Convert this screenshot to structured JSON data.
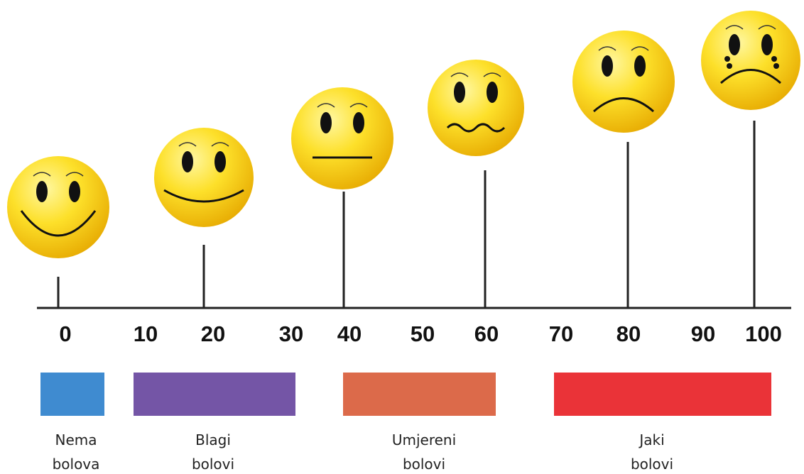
{
  "scale": {
    "ticks": [
      "0",
      "10",
      "20",
      "30",
      "40",
      "50",
      "60",
      "70",
      "80",
      "90",
      "100"
    ]
  },
  "categories": [
    {
      "lines": [
        "Nema",
        "bolova"
      ],
      "color": "#3f8bd0"
    },
    {
      "lines": [
        "Blagi",
        "bolovi"
      ],
      "color": "#7455a6"
    },
    {
      "lines": [
        "Umjereni",
        "bolovi"
      ],
      "color": "#dc6a4a"
    },
    {
      "lines": [
        "Jaki",
        "bolovi"
      ],
      "color": "#ea3338"
    }
  ]
}
